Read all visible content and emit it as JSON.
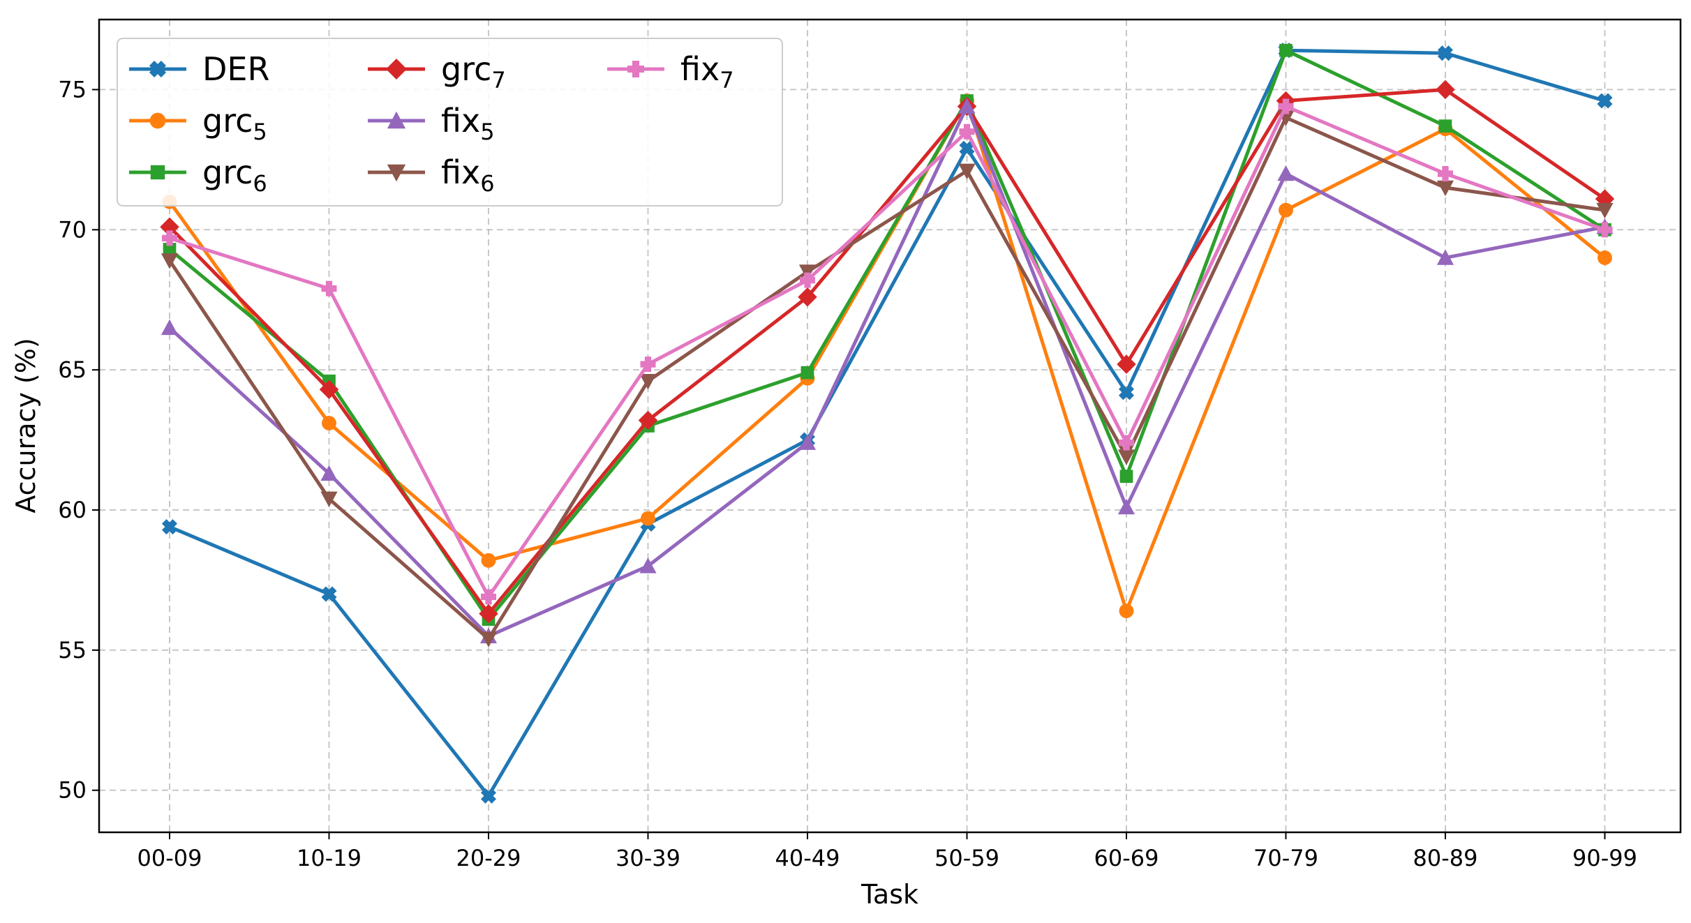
{
  "chart_data": {
    "type": "line",
    "xlabel": "Task",
    "ylabel": "Accuracy (%)",
    "categories": [
      "00-09",
      "10-19",
      "20-29",
      "30-39",
      "40-49",
      "50-59",
      "60-69",
      "70-79",
      "80-89",
      "90-99"
    ],
    "ylim": [
      48.5,
      77.5
    ],
    "yticks": [
      50,
      55,
      60,
      65,
      70,
      75
    ],
    "grid": true,
    "legend_position": "top-left",
    "series": [
      {
        "name": "DER",
        "base": "DER",
        "sub": "",
        "color": "#1f77b4",
        "marker": "x-filled",
        "values": [
          59.4,
          57.0,
          49.8,
          59.5,
          62.5,
          72.9,
          64.2,
          76.4,
          76.3,
          74.6
        ]
      },
      {
        "name": "grc5",
        "base": "grc",
        "sub": "5",
        "color": "#ff7f0e",
        "marker": "circle",
        "values": [
          71.0,
          63.1,
          58.2,
          59.7,
          64.7,
          74.6,
          56.4,
          70.7,
          73.6,
          69.0
        ]
      },
      {
        "name": "grc6",
        "base": "grc",
        "sub": "6",
        "color": "#2ca02c",
        "marker": "square",
        "values": [
          69.3,
          64.6,
          56.1,
          63.0,
          64.9,
          74.6,
          61.2,
          76.4,
          73.7,
          70.0
        ]
      },
      {
        "name": "grc7",
        "base": "grc",
        "sub": "7",
        "color": "#d62728",
        "marker": "diamond",
        "values": [
          70.1,
          64.3,
          56.3,
          63.2,
          67.6,
          74.4,
          65.2,
          74.6,
          75.0,
          71.1
        ]
      },
      {
        "name": "fix5",
        "base": "fix",
        "sub": "5",
        "color": "#9467bd",
        "marker": "triangle-up",
        "values": [
          66.5,
          61.3,
          55.5,
          58.0,
          62.4,
          74.4,
          60.1,
          72.0,
          69.0,
          70.1
        ]
      },
      {
        "name": "fix6",
        "base": "fix",
        "sub": "6",
        "color": "#8c564b",
        "marker": "triangle-down",
        "values": [
          68.9,
          60.4,
          55.4,
          64.6,
          68.5,
          72.1,
          61.9,
          74.0,
          71.5,
          70.7
        ]
      },
      {
        "name": "fix7",
        "base": "fix",
        "sub": "7",
        "color": "#e377c2",
        "marker": "plus-filled",
        "values": [
          69.7,
          67.9,
          56.9,
          65.2,
          68.2,
          73.5,
          62.4,
          74.4,
          72.0,
          70.0
        ]
      }
    ]
  }
}
